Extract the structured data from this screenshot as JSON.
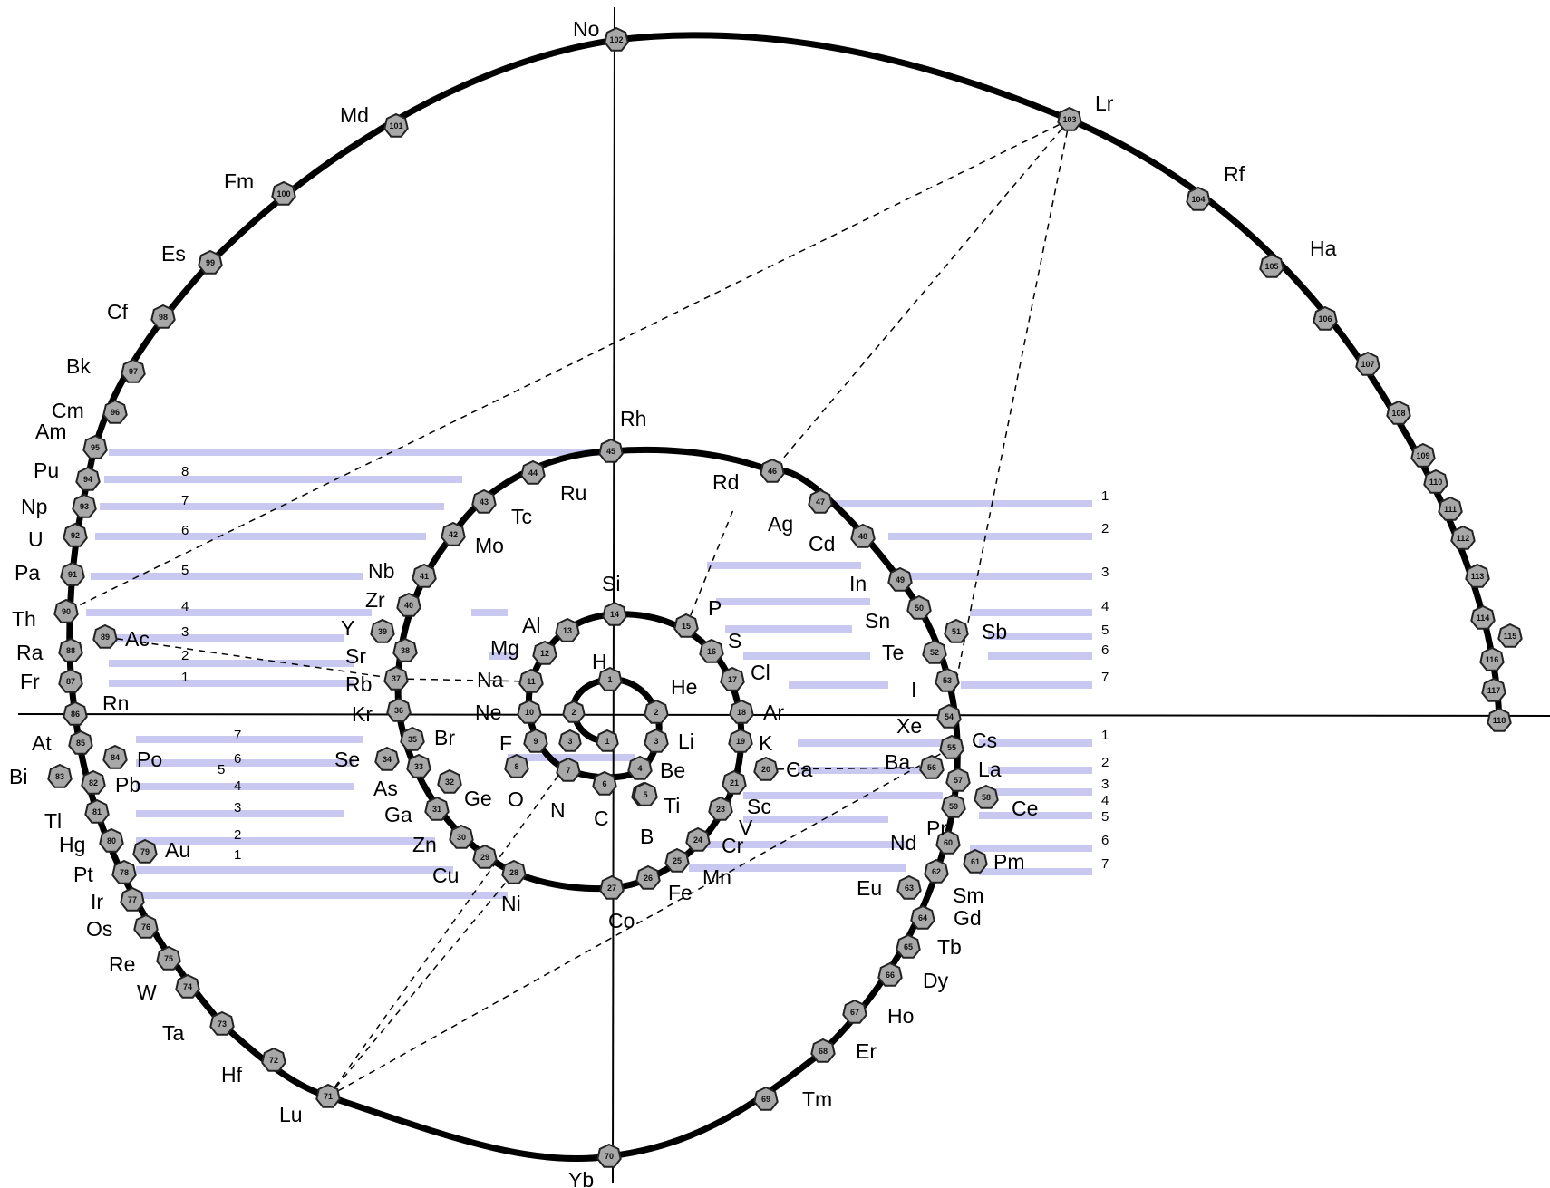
{
  "elements": [
    {
      "symbol": "No",
      "number": "102"
    },
    {
      "symbol": "Lr",
      "number": "103"
    },
    {
      "symbol": "Md",
      "number": "101"
    },
    {
      "symbol": "Fm",
      "number": "100"
    },
    {
      "symbol": "Es",
      "number": "99"
    },
    {
      "symbol": "Cf",
      "number": "98"
    },
    {
      "symbol": "Bk",
      "number": "97"
    },
    {
      "symbol": "Cm",
      "number": "96"
    },
    {
      "symbol": "Am",
      "number": "95"
    },
    {
      "symbol": "Pu",
      "number": "94"
    },
    {
      "symbol": "Np",
      "number": "93"
    },
    {
      "symbol": "U",
      "number": "92"
    },
    {
      "symbol": "Pa",
      "number": "91"
    },
    {
      "symbol": "Th",
      "number": "90"
    },
    {
      "symbol": "Ac",
      "number": "89"
    },
    {
      "symbol": "Ra",
      "number": "88"
    },
    {
      "symbol": "Fr",
      "number": "87"
    },
    {
      "symbol": "Rn",
      "number": "86"
    },
    {
      "symbol": "At",
      "number": "85"
    },
    {
      "symbol": "Po",
      "number": "84"
    },
    {
      "symbol": "Bi",
      "number": "83"
    },
    {
      "symbol": "Pb",
      "number": "82"
    },
    {
      "symbol": "Tl",
      "number": "81"
    },
    {
      "symbol": "Hg",
      "number": "80"
    },
    {
      "symbol": "Au",
      "number": "79"
    },
    {
      "symbol": "Pt",
      "number": "78"
    },
    {
      "symbol": "Ir",
      "number": "77"
    },
    {
      "symbol": "Os",
      "number": "76"
    },
    {
      "symbol": "Re",
      "number": "75"
    },
    {
      "symbol": "W",
      "number": "74"
    },
    {
      "symbol": "Ta",
      "number": "73"
    },
    {
      "symbol": "Hf",
      "number": "72"
    },
    {
      "symbol": "Lu",
      "number": "71"
    },
    {
      "symbol": "Yb",
      "number": "70"
    },
    {
      "symbol": "Tm",
      "number": "69"
    },
    {
      "symbol": "Er",
      "number": "68"
    },
    {
      "symbol": "Ho",
      "number": "67"
    },
    {
      "symbol": "Dy",
      "number": "66"
    },
    {
      "symbol": "Tb",
      "number": "65"
    },
    {
      "symbol": "Gd",
      "number": "64"
    },
    {
      "symbol": "Sm",
      "number": "62"
    },
    {
      "symbol": "Eu",
      "number": "63"
    },
    {
      "symbol": "Pm",
      "number": "61"
    },
    {
      "symbol": "Nd",
      "number": "60"
    },
    {
      "symbol": "Pr",
      "number": "59"
    },
    {
      "symbol": "Ce",
      "number": "58"
    },
    {
      "symbol": "La",
      "number": "57"
    },
    {
      "symbol": "Ba",
      "number": "56"
    },
    {
      "symbol": "Cs",
      "number": "55"
    },
    {
      "symbol": "Xe",
      "number": "54"
    },
    {
      "symbol": "I",
      "number": "53"
    },
    {
      "symbol": "Te",
      "number": "52"
    },
    {
      "symbol": "Sb",
      "number": "51"
    },
    {
      "symbol": "Sn",
      "number": "50"
    },
    {
      "symbol": "In",
      "number": "49"
    },
    {
      "symbol": "Cd",
      "number": "48"
    },
    {
      "symbol": "Ag",
      "number": "47"
    },
    {
      "symbol": "Rd",
      "number": "46"
    },
    {
      "symbol": "Rh",
      "number": "45"
    },
    {
      "symbol": "Ru",
      "number": "44"
    },
    {
      "symbol": "Tc",
      "number": "43"
    },
    {
      "symbol": "Mo",
      "number": "42"
    },
    {
      "symbol": "Nb",
      "number": "41"
    },
    {
      "symbol": "Zr",
      "number": "40"
    },
    {
      "symbol": "Y",
      "number": "39"
    },
    {
      "symbol": "Sr",
      "number": "38"
    },
    {
      "symbol": "Rb",
      "number": "37"
    },
    {
      "symbol": "Kr",
      "number": "36"
    },
    {
      "symbol": "Br",
      "number": "35"
    },
    {
      "symbol": "Se",
      "number": "34"
    },
    {
      "symbol": "As",
      "number": "33"
    },
    {
      "symbol": "Ge",
      "number": "32"
    },
    {
      "symbol": "Ga",
      "number": "31"
    },
    {
      "symbol": "Zn",
      "number": "30"
    },
    {
      "symbol": "Cu",
      "number": "29"
    },
    {
      "symbol": "Ni",
      "number": "28"
    },
    {
      "symbol": "Co",
      "number": "27"
    },
    {
      "symbol": "Fe",
      "number": "26"
    },
    {
      "symbol": "Mn",
      "number": "25"
    },
    {
      "symbol": "Cr",
      "number": "24"
    },
    {
      "symbol": "V",
      "number": "23"
    },
    {
      "symbol": "Ti",
      "number": "22"
    },
    {
      "symbol": "Sc",
      "number": "21"
    },
    {
      "symbol": "Ca",
      "number": "20"
    },
    {
      "symbol": "K",
      "number": "19"
    },
    {
      "symbol": "Ar",
      "number": "18"
    },
    {
      "symbol": "Cl",
      "number": "17"
    },
    {
      "symbol": "S",
      "number": "16"
    },
    {
      "symbol": "P",
      "number": "15"
    },
    {
      "symbol": "Si",
      "number": "14"
    },
    {
      "symbol": "Al",
      "number": "13"
    },
    {
      "symbol": "Mg",
      "number": "12"
    },
    {
      "symbol": "Na",
      "number": "11"
    },
    {
      "symbol": "Ne",
      "number": "10"
    },
    {
      "symbol": "F",
      "number": "9"
    },
    {
      "symbol": "O",
      "number": "8"
    },
    {
      "symbol": "N",
      "number": "7"
    },
    {
      "symbol": "C",
      "number": "6"
    },
    {
      "symbol": "B",
      "number": "5"
    },
    {
      "symbol": "Be",
      "number": "4"
    },
    {
      "symbol": "Li",
      "number": "3"
    },
    {
      "symbol": "He",
      "number": "2"
    },
    {
      "symbol": "H",
      "number": "1"
    },
    {
      "symbol": "Rf",
      "number": "104"
    },
    {
      "symbol": "Ha",
      "number": "105"
    }
  ],
  "extra_nodes": [
    "106",
    "107",
    "108",
    "109",
    "110",
    "111",
    "112",
    "113",
    "114",
    "115",
    "116",
    "117",
    "118"
  ],
  "row_numbers": {
    "left_top": [
      "8",
      "7",
      "6",
      "5",
      "4",
      "3",
      "2",
      "1"
    ],
    "left_bottom": [
      "7",
      "6",
      "5",
      "4",
      "3",
      "2",
      "1"
    ],
    "right_top": [
      "1",
      "2",
      "3",
      "4",
      "5",
      "6",
      "7"
    ],
    "right_bottom": [
      "1",
      "2",
      "3",
      "4",
      "5",
      "6",
      "7"
    ]
  },
  "colors": {
    "band": "#c8c8f0",
    "node": "#a8a8a8",
    "line": "#000000"
  }
}
